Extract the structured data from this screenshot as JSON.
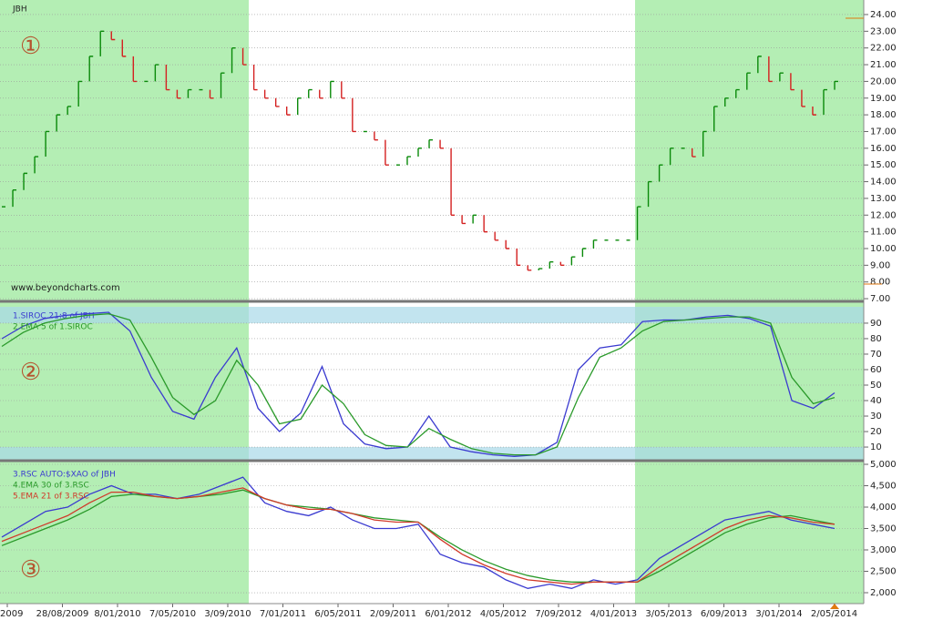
{
  "ticker": "JBH",
  "watermark": "www.beyondcharts.com",
  "panel_numbers": [
    "①",
    "②",
    "③"
  ],
  "chart_data": [
    {
      "type": "ohlc",
      "up_color": "#0a8a0a",
      "down_color": "#d42020",
      "ylim": [
        6.84,
        24.87
      ],
      "yticks": [
        {
          "value": 7,
          "label": "7.00"
        },
        {
          "value": 8,
          "label": "8.00"
        },
        {
          "value": 9,
          "label": "9.00"
        },
        {
          "value": 10,
          "label": "10.00"
        },
        {
          "value": 11,
          "label": "11.00"
        },
        {
          "value": 12,
          "label": "12.00"
        },
        {
          "value": 13,
          "label": "13.00"
        },
        {
          "value": 14,
          "label": "14.00"
        },
        {
          "value": 15,
          "label": "15.00"
        },
        {
          "value": 16,
          "label": "16.00"
        },
        {
          "value": 17,
          "label": "17.00"
        },
        {
          "value": 18,
          "label": "18.00"
        },
        {
          "value": 19,
          "label": "19.00"
        },
        {
          "value": 20,
          "label": "20.00"
        },
        {
          "value": 21,
          "label": "21.00"
        },
        {
          "value": 22,
          "label": "22.00"
        },
        {
          "value": 23,
          "label": "23.00"
        },
        {
          "value": 24,
          "label": "24.00"
        }
      ],
      "grid": true,
      "values": [
        12.5,
        13.5,
        14.5,
        15.5,
        17,
        18,
        18.5,
        20,
        21.5,
        23,
        22.5,
        21.5,
        20,
        20,
        21,
        19.5,
        19,
        19.5,
        19.5,
        19,
        20.5,
        22,
        21,
        19.5,
        19,
        18.5,
        18,
        19,
        19.5,
        19,
        20,
        19,
        17,
        17,
        16.5,
        15,
        15,
        15.5,
        16,
        16.5,
        16,
        12,
        11.5,
        12,
        11,
        10.5,
        10,
        9,
        8.7,
        8.8,
        9.2,
        9,
        9.5,
        10,
        10.5,
        10.5,
        10.5,
        10.5,
        12.5,
        14,
        15,
        16,
        16,
        15.5,
        17,
        18.5,
        19,
        19.5,
        20.5,
        21.5,
        20,
        20.5,
        19.5,
        18.5,
        18,
        19.5,
        20
      ]
    },
    {
      "type": "line",
      "ylim": [
        1.8,
        102.9
      ],
      "yticks": [
        10,
        20,
        30,
        40,
        50,
        60,
        70,
        80,
        90
      ],
      "grid": true,
      "series": [
        {
          "name": "1.SIROC 21:8  of JBH",
          "color": "#3a3ad0",
          "values": [
            80,
            88,
            93,
            95,
            96,
            97,
            85,
            55,
            33,
            28,
            55,
            74,
            35,
            20,
            32,
            62,
            25,
            12,
            9,
            10,
            30,
            10,
            7,
            5,
            4,
            5,
            13,
            60,
            74,
            76,
            91,
            92,
            92,
            94,
            95,
            93,
            88,
            40,
            35,
            45
          ]
        },
        {
          "name": "2.EMA 5  of 1.SIROC",
          "color": "#2a9a2a",
          "values": [
            75,
            84,
            90,
            93,
            95,
            96,
            92,
            68,
            42,
            31,
            40,
            66,
            50,
            25,
            28,
            50,
            38,
            18,
            11,
            10,
            22,
            15,
            9,
            6,
            5,
            5,
            10,
            42,
            68,
            74,
            85,
            91,
            92,
            93,
            94,
            94,
            90,
            55,
            38,
            42
          ]
        }
      ]
    },
    {
      "type": "line",
      "ylim": [
        1745,
        5064
      ],
      "yticks": [
        {
          "value": 2000,
          "label": "2,000"
        },
        {
          "value": 2500,
          "label": "2,500"
        },
        {
          "value": 3000,
          "label": "3,000"
        },
        {
          "value": 3500,
          "label": "3,500"
        },
        {
          "value": 4000,
          "label": "4,000"
        },
        {
          "value": 4500,
          "label": "4,500"
        },
        {
          "value": 5000,
          "label": "5,000"
        }
      ],
      "grid": true,
      "series": [
        {
          "name": "3.RSC  AUTO:$XAO of JBH",
          "color": "#3a3ad0",
          "values": [
            3300,
            3600,
            3900,
            4000,
            4300,
            4500,
            4300,
            4300,
            4200,
            4300,
            4500,
            4700,
            4100,
            3900,
            3800,
            4000,
            3700,
            3500,
            3500,
            3600,
            2900,
            2700,
            2600,
            2300,
            2100,
            2200,
            2100,
            2300,
            2200,
            2300,
            2800,
            3100,
            3400,
            3700,
            3800,
            3900,
            3700,
            3600,
            3500
          ]
        },
        {
          "name": "4.EMA 30  of 3.RSC",
          "color": "#2a9a2a",
          "values": [
            3100,
            3300,
            3500,
            3700,
            3950,
            4250,
            4300,
            4250,
            4200,
            4250,
            4300,
            4400,
            4200,
            4050,
            4000,
            3950,
            3850,
            3750,
            3700,
            3650,
            3300,
            3000,
            2750,
            2550,
            2400,
            2300,
            2250,
            2250,
            2250,
            2250,
            2500,
            2800,
            3100,
            3400,
            3600,
            3750,
            3800,
            3700,
            3600
          ]
        },
        {
          "name": "5.EMA 21  of 3.RSC",
          "color": "#d03a2a",
          "values": [
            3200,
            3400,
            3600,
            3800,
            4100,
            4350,
            4350,
            4250,
            4200,
            4250,
            4350,
            4450,
            4200,
            4050,
            3950,
            3950,
            3850,
            3700,
            3650,
            3650,
            3250,
            2900,
            2650,
            2450,
            2300,
            2250,
            2200,
            2250,
            2250,
            2250,
            2600,
            2900,
            3200,
            3500,
            3700,
            3800,
            3750,
            3650,
            3600
          ]
        }
      ],
      "x_labels": [
        "2009",
        "28/08/2009",
        "8/01/2010",
        "7/05/2010",
        "3/09/2010",
        "7/01/2011",
        "6/05/2011",
        "2/09/2011",
        "6/01/2012",
        "4/05/2012",
        "7/09/2012",
        "4/01/2013",
        "3/05/2013",
        "6/09/2013",
        "3/01/2014",
        "2/05/2014"
      ]
    }
  ]
}
